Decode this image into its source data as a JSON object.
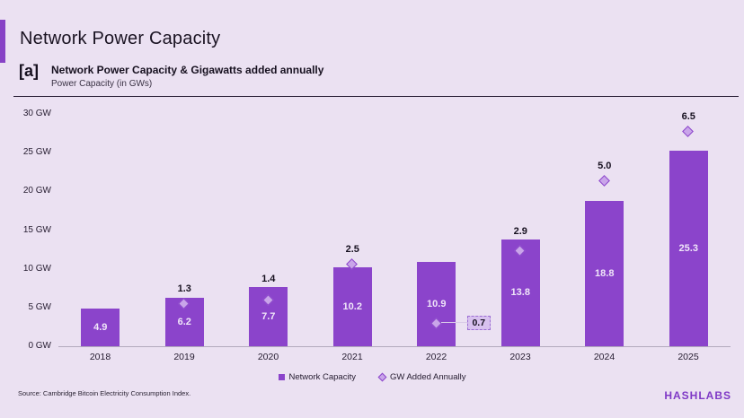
{
  "header": {
    "slide_title": "Network Power Capacity",
    "figure_tag": "[a]",
    "chart_title": "Network Power Capacity & Gigawatts added annually",
    "chart_subtitle": "Power Capacity (in GWs)"
  },
  "chart_data": {
    "type": "bar",
    "title": "Network Power Capacity & Gigawatts added annually",
    "subtitle": "Power Capacity (in GWs)",
    "categories": [
      "2018",
      "2019",
      "2020",
      "2021",
      "2022",
      "2023",
      "2024",
      "2025"
    ],
    "series": [
      {
        "name": "Network Capacity",
        "type": "bar",
        "axis": "primary",
        "color": "#8B44CB",
        "values": [
          4.9,
          6.2,
          7.7,
          10.2,
          10.9,
          13.8,
          18.8,
          25.3
        ],
        "labels": [
          "4.9",
          "6.2",
          "7.7",
          "10.2",
          "10.9",
          "13.8",
          "18.8",
          "25.3"
        ]
      },
      {
        "name": "GW Added Annually",
        "type": "scatter",
        "marker": "diamond",
        "axis": "secondary",
        "color": "#C9A5E9",
        "values": [
          null,
          1.3,
          1.4,
          2.5,
          0.7,
          2.9,
          5.0,
          6.5
        ],
        "labels": [
          null,
          "1.3",
          "1.4",
          "2.5",
          "0.7",
          "2.9",
          "5.0",
          "6.5"
        ]
      }
    ],
    "y_axis": {
      "min": 0,
      "max": 30,
      "tick_step": 5,
      "ticks": [
        "0 GW",
        "5 GW",
        "10 GW",
        "15 GW",
        "20 GW",
        "25 GW",
        "30 GW"
      ]
    },
    "secondary_y_axis": {
      "min": 0,
      "max": 7,
      "visible": false
    },
    "grid": false,
    "legend_position": "bottom",
    "callout_category": "2022"
  },
  "footer": {
    "source": "Source: Cambridge Bitcoin Electricity Consumption Index.",
    "brand": "HASHLABS"
  },
  "colors": {
    "background": "#EBE1F2",
    "bar": "#8B44CB",
    "diamond_fill": "#C9A5E9",
    "accent": "#8742C6",
    "brand_text": "#7F39C6"
  }
}
